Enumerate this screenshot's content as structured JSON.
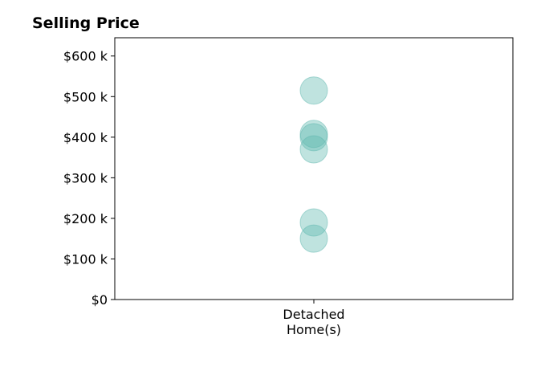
{
  "chart_data": {
    "type": "scatter",
    "title": "Selling Price",
    "xlabel": "",
    "ylabel": "",
    "categories": [
      "Detached\nHome(s)"
    ],
    "y_ticks": [
      0,
      100000,
      200000,
      300000,
      400000,
      500000,
      600000
    ],
    "y_tick_labels": [
      "$0",
      "$100 k",
      "$200 k",
      "$300 k",
      "$400 k",
      "$500 k",
      "$600 k"
    ],
    "ylim": [
      0,
      645000
    ],
    "grid": false,
    "legend": "none",
    "point_color": "#5fb8b0",
    "point_opacity": 0.4,
    "series": [
      {
        "category": "Detached\nHome(s)",
        "values": [
          515000,
          408000,
          400000,
          370000,
          190000,
          150000
        ]
      }
    ]
  }
}
